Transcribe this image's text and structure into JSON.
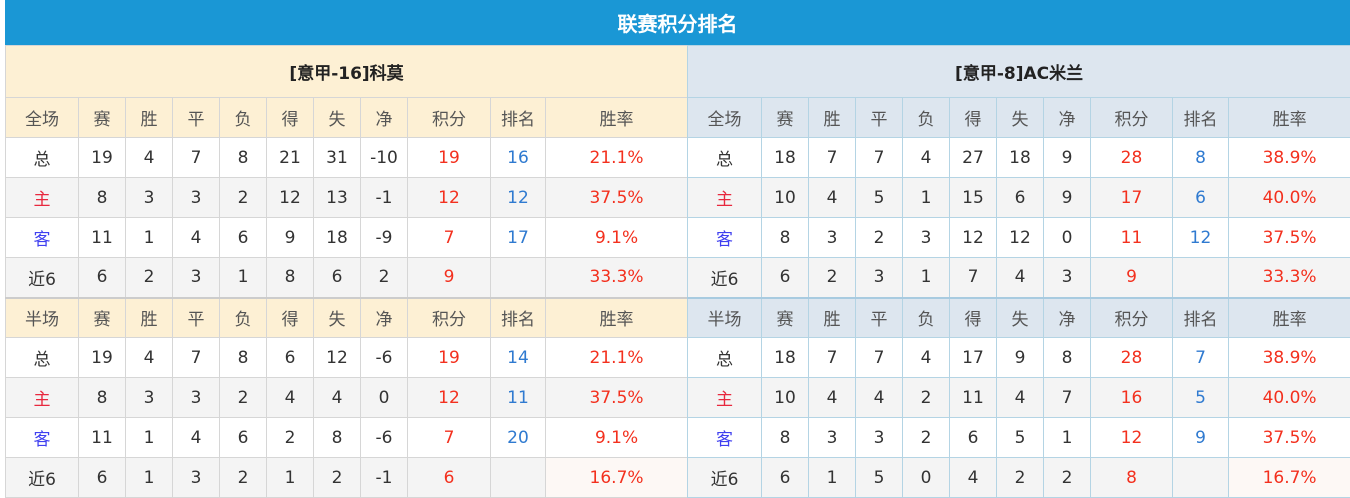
{
  "title": "联赛积分排名",
  "colors": {
    "header": "#1a97d5",
    "points": "#f3301e",
    "rank": "#2f7ad0",
    "home_label": "#e8283e",
    "away_label": "#4040f0"
  },
  "panels": [
    {
      "team": "[意甲-16]科莫",
      "sections": [
        {
          "headers": [
            "全场",
            "赛",
            "胜",
            "平",
            "负",
            "得",
            "失",
            "净",
            "积分",
            "排名",
            "胜率"
          ],
          "rows": [
            [
              "总",
              "19",
              "4",
              "7",
              "8",
              "21",
              "31",
              "-10",
              "19",
              "16",
              "21.1%"
            ],
            [
              "主",
              "8",
              "3",
              "3",
              "2",
              "12",
              "13",
              "-1",
              "12",
              "12",
              "37.5%"
            ],
            [
              "客",
              "11",
              "1",
              "4",
              "6",
              "9",
              "18",
              "-9",
              "7",
              "17",
              "9.1%"
            ],
            [
              "近6",
              "6",
              "2",
              "3",
              "1",
              "8",
              "6",
              "2",
              "9",
              "",
              "33.3%"
            ]
          ]
        },
        {
          "headers": [
            "半场",
            "赛",
            "胜",
            "平",
            "负",
            "得",
            "失",
            "净",
            "积分",
            "排名",
            "胜率"
          ],
          "rows": [
            [
              "总",
              "19",
              "4",
              "7",
              "8",
              "6",
              "12",
              "-6",
              "19",
              "14",
              "21.1%"
            ],
            [
              "主",
              "8",
              "3",
              "3",
              "2",
              "4",
              "4",
              "0",
              "12",
              "11",
              "37.5%"
            ],
            [
              "客",
              "11",
              "1",
              "4",
              "6",
              "2",
              "8",
              "-6",
              "7",
              "20",
              "9.1%"
            ],
            [
              "近6",
              "6",
              "1",
              "3",
              "2",
              "1",
              "2",
              "-1",
              "6",
              "",
              "16.7%"
            ]
          ]
        }
      ]
    },
    {
      "team": "[意甲-8]AC米兰",
      "sections": [
        {
          "headers": [
            "全场",
            "赛",
            "胜",
            "平",
            "负",
            "得",
            "失",
            "净",
            "积分",
            "排名",
            "胜率"
          ],
          "rows": [
            [
              "总",
              "18",
              "7",
              "7",
              "4",
              "27",
              "18",
              "9",
              "28",
              "8",
              "38.9%"
            ],
            [
              "主",
              "10",
              "4",
              "5",
              "1",
              "15",
              "6",
              "9",
              "17",
              "6",
              "40.0%"
            ],
            [
              "客",
              "8",
              "3",
              "2",
              "3",
              "12",
              "12",
              "0",
              "11",
              "12",
              "37.5%"
            ],
            [
              "近6",
              "6",
              "2",
              "3",
              "1",
              "7",
              "4",
              "3",
              "9",
              "",
              "33.3%"
            ]
          ]
        },
        {
          "headers": [
            "半场",
            "赛",
            "胜",
            "平",
            "负",
            "得",
            "失",
            "净",
            "积分",
            "排名",
            "胜率"
          ],
          "rows": [
            [
              "总",
              "18",
              "7",
              "7",
              "4",
              "17",
              "9",
              "8",
              "28",
              "7",
              "38.9%"
            ],
            [
              "主",
              "10",
              "4",
              "4",
              "2",
              "11",
              "4",
              "7",
              "16",
              "5",
              "40.0%"
            ],
            [
              "客",
              "8",
              "3",
              "3",
              "2",
              "6",
              "5",
              "1",
              "12",
              "9",
              "37.5%"
            ],
            [
              "近6",
              "6",
              "1",
              "5",
              "0",
              "4",
              "2",
              "2",
              "8",
              "",
              "16.7%"
            ]
          ]
        }
      ]
    }
  ]
}
